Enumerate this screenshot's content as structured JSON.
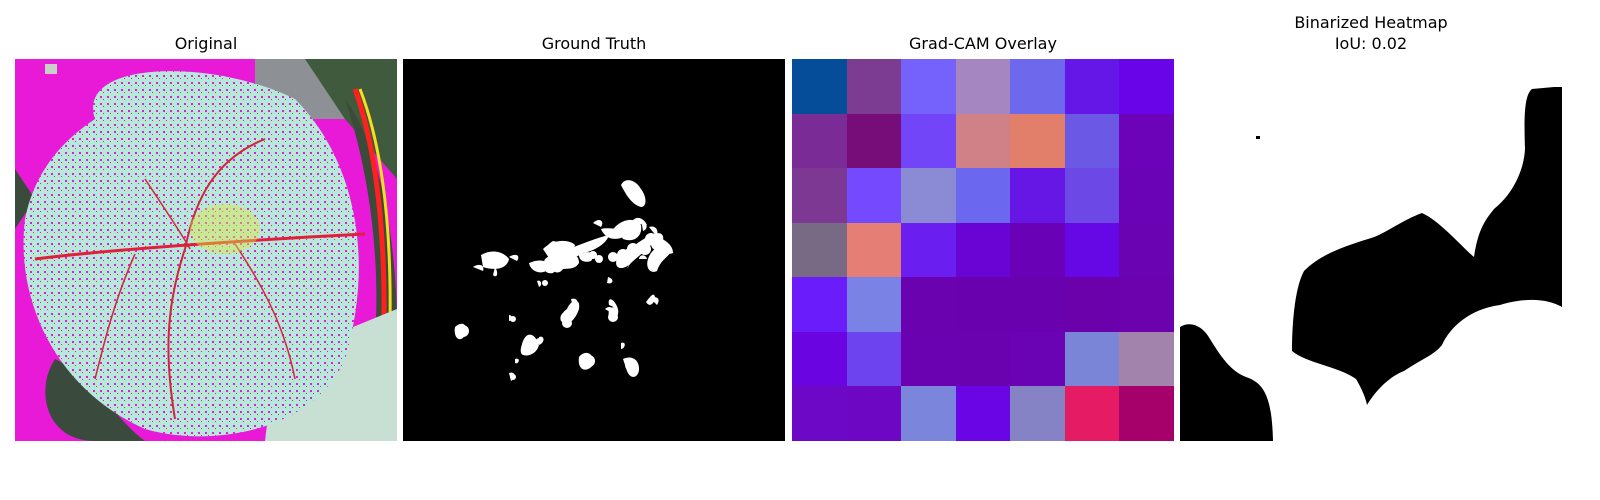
{
  "panels": {
    "original": {
      "title": "Original"
    },
    "ground_truth": {
      "title": "Ground Truth"
    },
    "gradcam": {
      "title": "Grad-CAM Overlay",
      "grid": [
        [
          "#064d99",
          "#7c3c92",
          "#7561fb",
          "#a586c0",
          "#6d68ec",
          "#6417e7",
          "#6904e8"
        ],
        [
          "#7a2b95",
          "#770d79",
          "#7345f8",
          "#cf8187",
          "#e17f6b",
          "#6b59e6",
          "#6c03b8"
        ],
        [
          "#7d3893",
          "#7549fd",
          "#8a8ad5",
          "#6c67ef",
          "#6617e6",
          "#6c48e6",
          "#6a03b6"
        ],
        [
          "#786a84",
          "#e57f75",
          "#6a1ef0",
          "#6a04d5",
          "#6902b7",
          "#6608e6",
          "#6a03b2"
        ],
        [
          "#6a1cfb",
          "#7a82e6",
          "#6b02b0",
          "#6a01ae",
          "#6a01ae",
          "#6b01aa",
          "#6b02ad"
        ],
        [
          "#6a05e2",
          "#6c43ee",
          "#6b02b2",
          "#6a02b0",
          "#6a03b4",
          "#7a85d7",
          "#a183ac"
        ],
        [
          "#6c08c6",
          "#6d07c3",
          "#7b85db",
          "#6a05e6",
          "#8583c6",
          "#e51c63",
          "#a6006a"
        ]
      ]
    },
    "binarized": {
      "title": "Binarized Heatmap",
      "iou": "IoU: 0.02"
    }
  }
}
